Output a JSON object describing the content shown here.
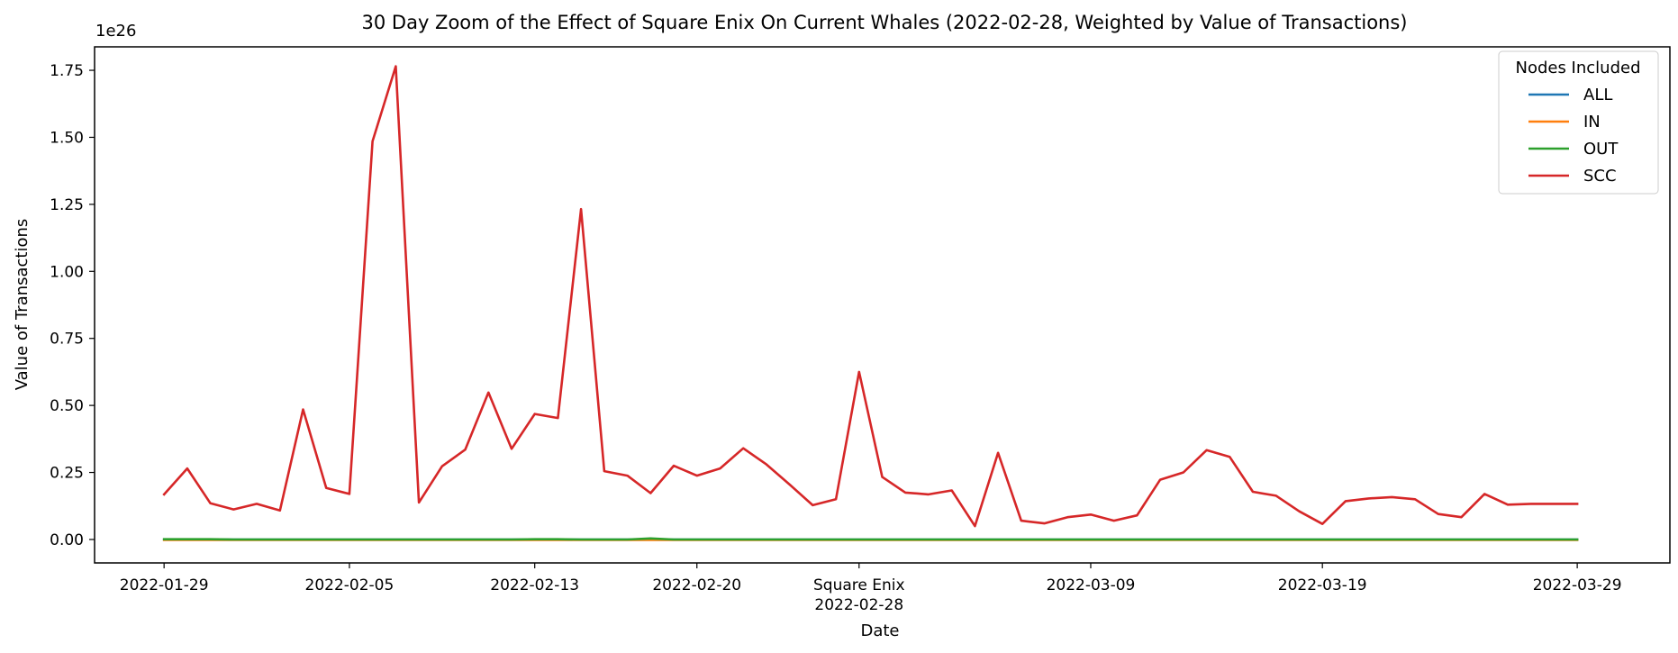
{
  "chart_data": {
    "type": "line",
    "title": "30 Day Zoom of the Effect of Square Enix On Current Whales (2022-02-28, Weighted by Value of Transactions)",
    "xlabel": "Date",
    "ylabel": "Value of Transactions",
    "y_offset_label": "1e26",
    "y_scale_exponent": 26,
    "ylim": [
      -0.0875,
      1.8375
    ],
    "xlim": [
      "2022-01-26",
      "2022-04-04"
    ],
    "x_ticks": [
      {
        "date": "2022-01-29",
        "label": "2022-01-29"
      },
      {
        "date": "2022-02-06",
        "label": "2022-02-05"
      },
      {
        "date": "2022-02-14",
        "label": "2022-02-13"
      },
      {
        "date": "2022-02-21",
        "label": "2022-02-20"
      },
      {
        "date": "2022-02-28",
        "label": "2022-02-28",
        "annotation": "Square Enix"
      },
      {
        "date": "2022-03-10",
        "label": "2022-03-09"
      },
      {
        "date": "2022-03-20",
        "label": "2022-03-19"
      },
      {
        "date": "2022-03-31",
        "label": "2022-03-29"
      }
    ],
    "y_ticks": [
      0.0,
      0.25,
      0.5,
      0.75,
      1.0,
      1.25,
      1.5,
      1.75
    ],
    "y_tick_labels": [
      "0.00",
      "0.25",
      "0.50",
      "0.75",
      "1.00",
      "1.25",
      "1.50",
      "1.75"
    ],
    "legend": {
      "title": "Nodes Included",
      "placement": "top-right"
    },
    "x": [
      "2022-01-29",
      "2022-01-30",
      "2022-01-31",
      "2022-02-01",
      "2022-02-02",
      "2022-02-03",
      "2022-02-04",
      "2022-02-05",
      "2022-02-06",
      "2022-02-07",
      "2022-02-08",
      "2022-02-09",
      "2022-02-10",
      "2022-02-11",
      "2022-02-12",
      "2022-02-13",
      "2022-02-14",
      "2022-02-15",
      "2022-02-16",
      "2022-02-17",
      "2022-02-18",
      "2022-02-19",
      "2022-02-20",
      "2022-02-21",
      "2022-02-22",
      "2022-02-23",
      "2022-02-24",
      "2022-02-25",
      "2022-02-26",
      "2022-02-27",
      "2022-02-28",
      "2022-03-01",
      "2022-03-02",
      "2022-03-03",
      "2022-03-04",
      "2022-03-05",
      "2022-03-06",
      "2022-03-07",
      "2022-03-08",
      "2022-03-09",
      "2022-03-10",
      "2022-03-11",
      "2022-03-12",
      "2022-03-13",
      "2022-03-14",
      "2022-03-15",
      "2022-03-16",
      "2022-03-17",
      "2022-03-18",
      "2022-03-19",
      "2022-03-20",
      "2022-03-21",
      "2022-03-22",
      "2022-03-23",
      "2022-03-24",
      "2022-03-25",
      "2022-03-26",
      "2022-03-27",
      "2022-03-28",
      "2022-03-29",
      "2022-03-30",
      "2022-03-31"
    ],
    "series": [
      {
        "name": "ALL",
        "color": "#1f77b4",
        "values": [
          0.0,
          0.0,
          0.0,
          0.0,
          0.0,
          0.0,
          0.0,
          0.0,
          0.0,
          0.0,
          0.0,
          0.0,
          0.0,
          0.0,
          0.0,
          0.0,
          0.0,
          0.0,
          0.0,
          0.0,
          0.0,
          0.0,
          0.0,
          0.0,
          0.0,
          0.0,
          0.0,
          0.0,
          0.0,
          0.0,
          0.0,
          0.0,
          0.0,
          0.0,
          0.0,
          0.0,
          0.0,
          0.0,
          0.0,
          0.0,
          0.0,
          0.0,
          0.0,
          0.0,
          0.0,
          0.0,
          0.0,
          0.0,
          0.0,
          0.0,
          0.0,
          0.0,
          0.0,
          0.0,
          0.0,
          0.0,
          0.0,
          0.0,
          0.0,
          0.0,
          0.0,
          0.0
        ]
      },
      {
        "name": "IN",
        "color": "#ff7f0e",
        "values": [
          -0.002,
          -0.002,
          -0.002,
          -0.002,
          -0.002,
          -0.002,
          -0.002,
          -0.002,
          -0.002,
          -0.002,
          -0.002,
          -0.002,
          -0.002,
          -0.002,
          -0.002,
          -0.002,
          -0.002,
          -0.002,
          -0.002,
          -0.002,
          -0.002,
          -0.002,
          -0.002,
          -0.002,
          -0.002,
          -0.002,
          -0.002,
          -0.002,
          -0.002,
          -0.002,
          -0.002,
          -0.002,
          -0.002,
          -0.002,
          -0.002,
          -0.002,
          -0.002,
          -0.002,
          -0.002,
          -0.002,
          -0.002,
          -0.002,
          -0.002,
          -0.002,
          -0.002,
          -0.002,
          -0.002,
          -0.002,
          -0.002,
          -0.002,
          -0.002,
          -0.002,
          -0.002,
          -0.002,
          -0.002,
          -0.002,
          -0.002,
          -0.002,
          -0.002,
          -0.002,
          -0.002,
          -0.002
        ]
      },
      {
        "name": "OUT",
        "color": "#2ca02c",
        "values": [
          0.001,
          0.001,
          0.001,
          0.0,
          0.0,
          0.0,
          0.0,
          0.0,
          0.0,
          0.0,
          0.0,
          0.0,
          0.0,
          0.0,
          0.0,
          0.0,
          0.001,
          0.001,
          0.0,
          0.0,
          0.0,
          0.004,
          0.0,
          0.0,
          0.0,
          0.0,
          0.0,
          0.0,
          0.0,
          0.0,
          0.0,
          0.0,
          0.0,
          0.0,
          0.0,
          0.0,
          0.0,
          0.0,
          0.0,
          0.0,
          0.0,
          0.0,
          0.0,
          0.0,
          0.0,
          0.0,
          0.0,
          0.0,
          0.0,
          0.0,
          0.0,
          0.0,
          0.0,
          0.0,
          0.0,
          0.0,
          0.0,
          0.0,
          0.0,
          0.0,
          0.0,
          0.0
        ]
      },
      {
        "name": "SCC",
        "color": "#d62728",
        "values": [
          0.168,
          0.265,
          0.135,
          0.112,
          0.133,
          0.108,
          0.485,
          0.192,
          0.17,
          1.485,
          1.765,
          0.138,
          0.273,
          0.335,
          0.548,
          0.338,
          0.468,
          0.453,
          1.232,
          0.255,
          0.238,
          0.173,
          0.275,
          0.238,
          0.265,
          0.34,
          0.28,
          0.205,
          0.128,
          0.15,
          0.625,
          0.233,
          0.175,
          0.168,
          0.183,
          0.05,
          0.323,
          0.07,
          0.06,
          0.083,
          0.093,
          0.07,
          0.09,
          0.223,
          0.25,
          0.333,
          0.308,
          0.178,
          0.163,
          0.105,
          0.058,
          0.143,
          0.153,
          0.158,
          0.15,
          0.095,
          0.083,
          0.17,
          0.13,
          0.133,
          0.133,
          0.133
        ]
      }
    ]
  }
}
